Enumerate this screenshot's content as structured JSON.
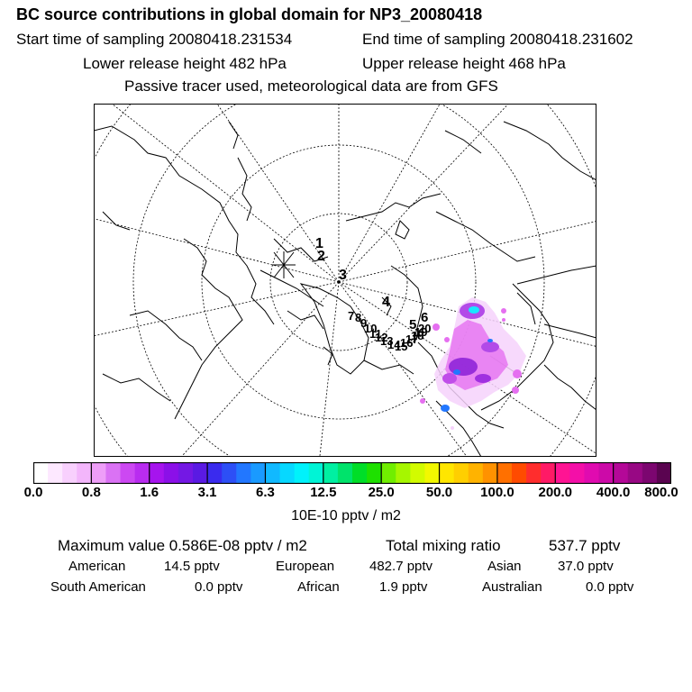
{
  "header": {
    "title": "BC  source contributions in global domain for NP3_20080418",
    "start_time": "Start time of sampling 20080418.231534",
    "end_time": "End time of sampling 20080418.231602",
    "lower_height": "Lower release height  482 hPa",
    "upper_height": "Upper release height  468 hPa",
    "tracer_note": "Passive tracer used, meteorological data are from GFS"
  },
  "map": {
    "trajectory_labels": [
      "1",
      "2",
      "3",
      "4",
      "5",
      "6",
      "7",
      "8",
      "9",
      "10",
      "11",
      "12",
      "13",
      "14",
      "15",
      "16",
      "17",
      "18",
      "19",
      "20"
    ],
    "colors": {
      "ocean_lines": "#000000",
      "grid": "#000000",
      "plume_magenta": "#e23cf0",
      "plume_purple": "#8a1fd6",
      "plume_cyan": "#18e6ff"
    }
  },
  "colorbar": {
    "tick_labels": [
      "0.0",
      "0.8",
      "1.6",
      "3.1",
      "6.3",
      "12.5",
      "25.0",
      "50.0",
      "100.0",
      "200.0",
      "400.0",
      "800.0"
    ],
    "colors": [
      "#ffffff",
      "#fde8ff",
      "#f8d0fd",
      "#f3b6fb",
      "#ee9ef8",
      "#da72f4",
      "#cc48f2",
      "#b92cf0",
      "#a614ee",
      "#8b10e8",
      "#7418e4",
      "#5a1ae3",
      "#3a2bee",
      "#2d4ff6",
      "#2277ff",
      "#1a9aff",
      "#11b9ff",
      "#07d8ff",
      "#00f2fb",
      "#00f4d6",
      "#00f0a2",
      "#00e36b",
      "#00de28",
      "#1ee000",
      "#70ee00",
      "#a6f600",
      "#d2fb00",
      "#f2f800",
      "#ffe600",
      "#ffcf00",
      "#ffb300",
      "#ff9200",
      "#ff7000",
      "#ff4b00",
      "#ff2d2d",
      "#ff1a66",
      "#ff1493",
      "#f40fa8",
      "#e00bb0",
      "#cc0aa8",
      "#b40898",
      "#980884",
      "#7c0670",
      "#5a0450"
    ],
    "units": "10E-10 pptv / m2"
  },
  "stats": {
    "max_value_label": "Maximum value  0.586E-08 pptv / m2",
    "total_mixing_label": "Total mixing ratio",
    "total_mixing_value": "537.7 pptv",
    "american_label": "American",
    "american_value": "14.5 pptv",
    "european_label": "European",
    "european_value": "482.7 pptv",
    "asian_label": "Asian",
    "asian_value": "37.0 pptv",
    "south_american_label": "South American",
    "south_american_value": "0.0 pptv",
    "african_label": "African",
    "african_value": "1.9 pptv",
    "australian_label": "Australian",
    "australian_value": "0.0 pptv"
  }
}
